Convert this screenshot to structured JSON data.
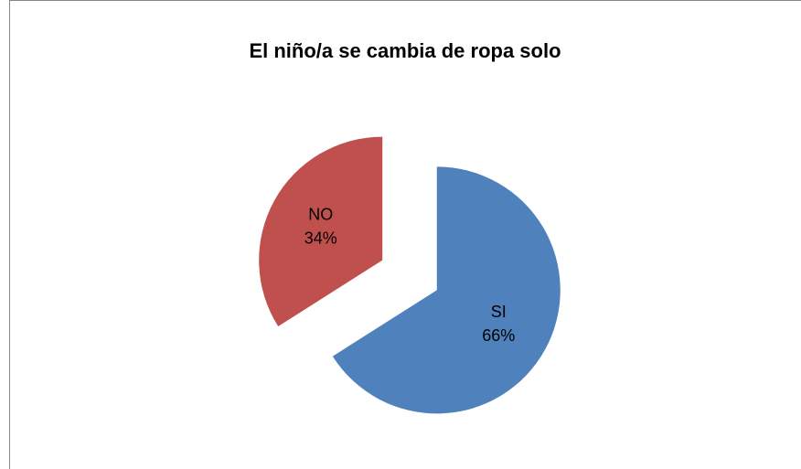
{
  "chart_data": {
    "type": "pie",
    "title": "El niño/a se cambia de ropa solo",
    "categories": [
      "SI",
      "NO"
    ],
    "values": [
      66,
      34
    ],
    "value_labels": [
      "66%",
      "34%"
    ],
    "colors": [
      "#4f81bd",
      "#c0504d"
    ]
  }
}
